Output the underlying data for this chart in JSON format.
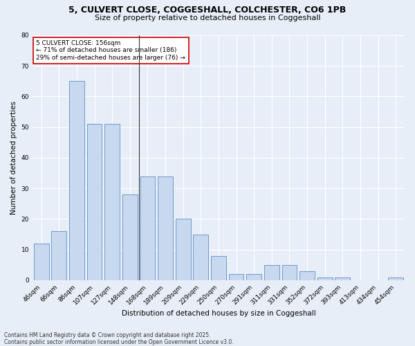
{
  "title_line1": "5, CULVERT CLOSE, COGGESHALL, COLCHESTER, CO6 1PB",
  "title_line2": "Size of property relative to detached houses in Coggeshall",
  "xlabel": "Distribution of detached houses by size in Coggeshall",
  "ylabel": "Number of detached properties",
  "categories": [
    "46sqm",
    "66sqm",
    "86sqm",
    "107sqm",
    "127sqm",
    "148sqm",
    "168sqm",
    "189sqm",
    "209sqm",
    "229sqm",
    "250sqm",
    "270sqm",
    "291sqm",
    "311sqm",
    "331sqm",
    "352sqm",
    "372sqm",
    "393sqm",
    "413sqm",
    "434sqm",
    "454sqm"
  ],
  "values": [
    12,
    16,
    65,
    51,
    51,
    28,
    34,
    34,
    20,
    15,
    8,
    2,
    2,
    5,
    5,
    3,
    1,
    1,
    0,
    0,
    1
  ],
  "bar_color": "#c8d9ef",
  "bar_edge_color": "#5b8dc8",
  "bg_color": "#e8eef7",
  "grid_color": "#ffffff",
  "annotation_text": "5 CULVERT CLOSE: 156sqm\n← 71% of detached houses are smaller (186)\n29% of semi-detached houses are larger (76) →",
  "annotation_box_color": "#ffffff",
  "annotation_box_edge": "#cc0000",
  "vline_x": 5.5,
  "ylim": [
    0,
    80
  ],
  "yticks": [
    0,
    10,
    20,
    30,
    40,
    50,
    60,
    70,
    80
  ],
  "footer_line1": "Contains HM Land Registry data © Crown copyright and database right 2025.",
  "footer_line2": "Contains public sector information licensed under the Open Government Licence v3.0.",
  "title_fontsize": 9,
  "subtitle_fontsize": 8,
  "axis_label_fontsize": 7.5,
  "tick_fontsize": 6.5,
  "annotation_fontsize": 6.5,
  "footer_fontsize": 5.5
}
